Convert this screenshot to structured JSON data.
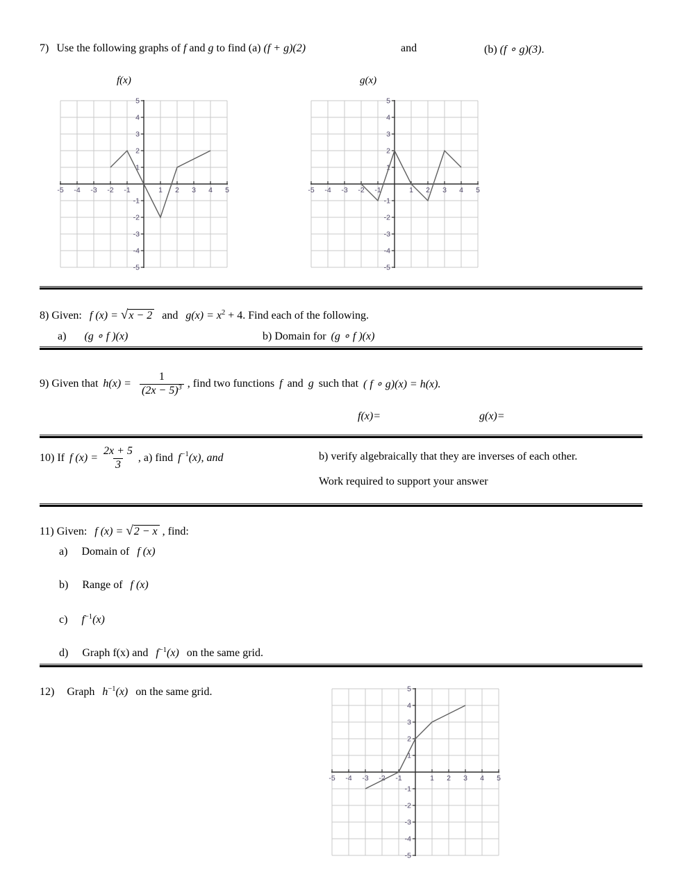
{
  "colors": {
    "grid": "#c9c9c9",
    "axis": "#2b2b2b",
    "curve": "#5f5f5f",
    "tick_label": "#4e4668",
    "text": "#000000",
    "divider": "#000000"
  },
  "q7": {
    "num": "7)",
    "intro": "Use the following graphs of ",
    "f_word": "f",
    "and_word": " and ",
    "g_word": "g",
    "find": " to find (a) ",
    "expr_a": "(f + g)(2)",
    "and_mid": "and",
    "b_label": "(b) ",
    "expr_b": "(f ∘ g)(3)",
    "period": "."
  },
  "q8": {
    "num": "8) Given:",
    "f_lhs": "f (x) =",
    "sqrt": "√",
    "radicand": "x − 2",
    "and_text": "and",
    "g_lhs": "g(x) = x",
    "g_exp": "2",
    "g_tail": "+ 4. Find each of the following.",
    "a_label": "a)",
    "a_expr": "(g ∘ f )(x)",
    "b_label": "b) Domain for",
    "b_expr": "(g ∘ f )(x)"
  },
  "q9": {
    "num": "9) Given that",
    "h_lhs": "h(x) =",
    "frac_num": "1",
    "frac_den": "(2x − 5)",
    "frac_den_exp": "3",
    "mid1": ", find two functions",
    "f_word": "f",
    "and_word": "and",
    "g_word": "g",
    "mid2": "such that",
    "tail_expr": "( f ∘ g)(x) = h(x).",
    "f_label": "f(x)=",
    "g_label": "g(x)="
  },
  "q10": {
    "num": "10)  If",
    "f_lhs": "f (x) =",
    "frac_num": "2x + 5",
    "frac_den": "3",
    "a_mid": ", a) find",
    "finv_base": "f",
    "finv_exp": "−1",
    "finv_tail": "(x), and",
    "b_text": "b) verify algebraically that they are inverses of each other.",
    "work_note": "Work required to support your answer"
  },
  "q11": {
    "num": "11)  Given:",
    "f_lhs": "f (x) =",
    "sqrt": "√",
    "radicand": "2 − x",
    "tail": ", find:",
    "a_label": "a)",
    "a_text": "Domain of",
    "a_expr": "f (x)",
    "b_label": "b)",
    "b_text": "Range of",
    "b_expr": "f (x)",
    "c_label": "c)",
    "c_base": "f",
    "c_exp": "−1",
    "c_tail": "(x)",
    "d_label": "d)",
    "d_pre": "Graph f(x) and",
    "d_base": "f",
    "d_exp": "−1",
    "d_tail": "(x)",
    "d_post": "on the same grid."
  },
  "q12": {
    "num": "12)",
    "pre": "Graph",
    "h_base": "h",
    "h_exp": "−1",
    "h_tail": "(x)",
    "post": "on the same grid."
  },
  "chart_data": [
    {
      "type": "line",
      "title": "f(x)",
      "x": [
        -2,
        -1,
        1,
        2,
        4
      ],
      "y": [
        1,
        2,
        -2,
        1,
        2
      ],
      "xlim": [
        -5,
        5
      ],
      "ylim": [
        -5,
        5
      ],
      "xticks": [
        -5,
        -4,
        -3,
        -2,
        -1,
        1,
        2,
        3,
        4,
        5
      ],
      "yticks": [
        -5,
        -4,
        -3,
        -2,
        -1,
        1,
        2,
        3,
        4,
        5
      ],
      "grid": true,
      "legend": "none"
    },
    {
      "type": "line",
      "title": "g(x)",
      "x": [
        -2,
        -1,
        0,
        1,
        2,
        3,
        4
      ],
      "y": [
        0,
        -1,
        2,
        0,
        -1,
        2,
        1
      ],
      "xlim": [
        -5,
        5
      ],
      "ylim": [
        -5,
        5
      ],
      "xticks": [
        -5,
        -4,
        -3,
        -2,
        -1,
        1,
        2,
        3,
        4,
        5
      ],
      "yticks": [
        -5,
        -4,
        -3,
        -2,
        -1,
        1,
        2,
        3,
        4,
        5
      ],
      "grid": true,
      "legend": "none"
    },
    {
      "type": "line",
      "title": "",
      "x": [
        -3,
        -1,
        0,
        1,
        3
      ],
      "y": [
        -1,
        0,
        2,
        3,
        4
      ],
      "xlim": [
        -5,
        5
      ],
      "ylim": [
        -5,
        5
      ],
      "xticks": [
        -5,
        -4,
        -3,
        -2,
        -1,
        1,
        2,
        3,
        4,
        5
      ],
      "yticks": [
        -5,
        -4,
        -3,
        -2,
        -1,
        1,
        2,
        3,
        4,
        5
      ],
      "grid": true,
      "legend": "none"
    }
  ]
}
